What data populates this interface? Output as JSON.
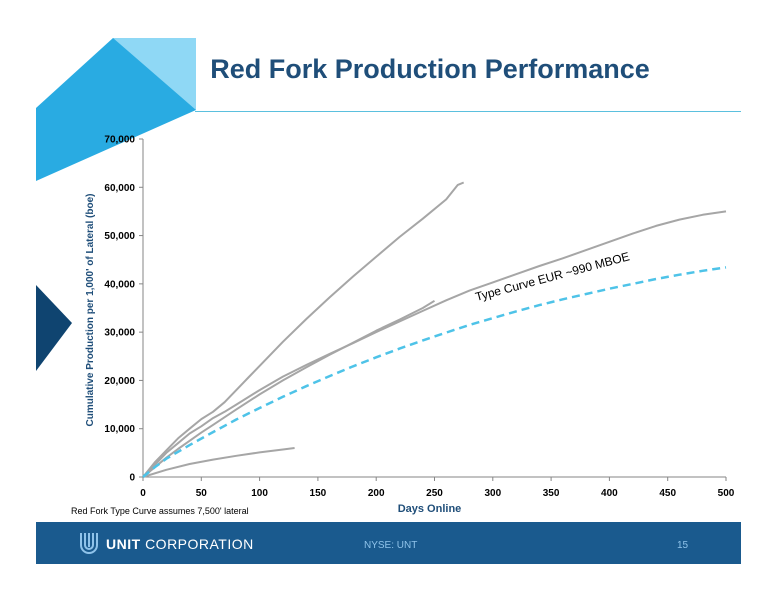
{
  "slide": {
    "title": "Red Fork Production Performance",
    "footnote": "Red Fork Type Curve assumes 7,500' lateral",
    "footer": {
      "brand_bold": "UNIT",
      "brand_rest": "CORPORATION",
      "ticker": "NYSE: UNT",
      "page": "15"
    },
    "colors": {
      "accent": "#1a5a8e",
      "title": "#1f4e79",
      "light_blue": "#29abe2",
      "dark_blue": "#0f4470"
    }
  },
  "chart_data": {
    "type": "line",
    "title": "",
    "xlabel": "Days Online",
    "ylabel": "Cumulative Production per 1,000' of Lateral (boe)",
    "xlim": [
      0,
      500
    ],
    "ylim": [
      0,
      70000
    ],
    "xticks": [
      "0",
      "50",
      "100",
      "150",
      "200",
      "250",
      "300",
      "350",
      "400",
      "450",
      "500"
    ],
    "yticks": [
      "0",
      "10,000",
      "20,000",
      "30,000",
      "40,000",
      "50,000",
      "60,000",
      "70,000"
    ],
    "grid": false,
    "series": [
      {
        "color": "#a6a6a6",
        "dash": false,
        "x": [
          0,
          10,
          20,
          30,
          40,
          50,
          60,
          70,
          80,
          90,
          100,
          120,
          140,
          160,
          180,
          200,
          220,
          240,
          260,
          270,
          275
        ],
        "y": [
          0,
          3000,
          5500,
          8000,
          10000,
          12000,
          13500,
          15500,
          18000,
          20500,
          23000,
          28000,
          32700,
          37200,
          41500,
          45600,
          49700,
          53500,
          57500,
          60500,
          61000
        ]
      },
      {
        "color": "#a6a6a6",
        "dash": false,
        "x": [
          0,
          10,
          20,
          30,
          40,
          50,
          60,
          70,
          80,
          100,
          120,
          140,
          160,
          180,
          200,
          220,
          240,
          260,
          280,
          300,
          320,
          340,
          360,
          380,
          400,
          420,
          440,
          460,
          480,
          500
        ],
        "y": [
          0,
          2500,
          5000,
          7000,
          9000,
          10500,
          12200,
          13500,
          15000,
          18000,
          20800,
          23200,
          25500,
          27700,
          30000,
          32200,
          34400,
          36600,
          38600,
          40300,
          42000,
          43700,
          45300,
          47000,
          48700,
          50400,
          52000,
          53300,
          54300,
          55000
        ]
      },
      {
        "color": "#a6a6a6",
        "dash": false,
        "x": [
          0,
          10,
          20,
          30,
          40,
          50,
          60,
          80,
          100,
          120,
          140,
          160,
          180,
          200,
          220,
          240,
          250
        ],
        "y": [
          0,
          2000,
          4000,
          5800,
          7500,
          9200,
          10800,
          14000,
          17100,
          20000,
          22700,
          25300,
          27800,
          30300,
          32600,
          35000,
          36500
        ]
      },
      {
        "color": "#a6a6a6",
        "dash": false,
        "x": [
          0,
          20,
          40,
          60,
          80,
          100,
          120,
          130
        ],
        "y": [
          0,
          1500,
          2700,
          3600,
          4400,
          5100,
          5700,
          6000
        ]
      },
      {
        "name": "Type Curve EUR ~990 MBOE",
        "color": "#4ec3e8",
        "dash": true,
        "x": [
          0,
          10,
          20,
          40,
          60,
          80,
          100,
          120,
          140,
          160,
          180,
          200,
          220,
          240,
          260,
          280,
          300,
          320,
          340,
          360,
          380,
          400,
          420,
          440,
          460,
          480,
          500
        ],
        "y": [
          0,
          2000,
          3800,
          6600,
          9300,
          11900,
          14300,
          16600,
          18800,
          20900,
          22900,
          24800,
          26600,
          28300,
          29900,
          31500,
          32900,
          34300,
          35600,
          36800,
          37900,
          39000,
          40000,
          41000,
          41900,
          42700,
          43400
        ]
      }
    ]
  }
}
